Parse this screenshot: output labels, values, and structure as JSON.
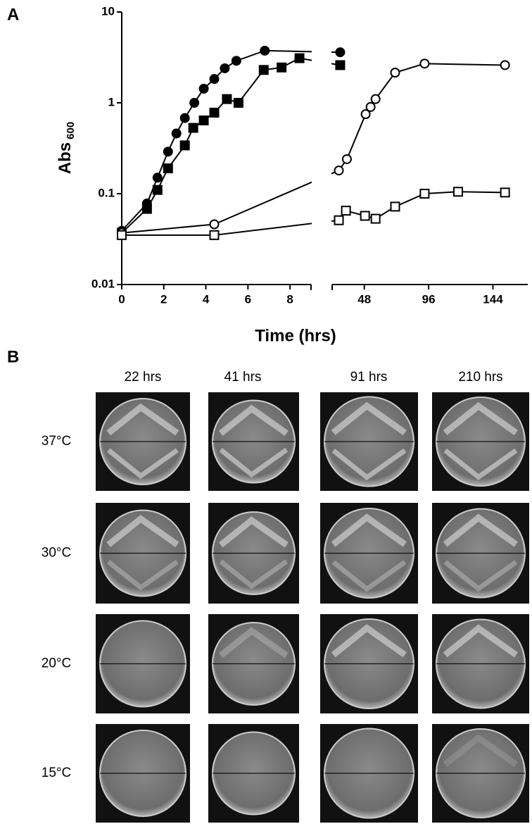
{
  "chart_data": {
    "type": "line",
    "panel_label": "A",
    "y_label": "Abs",
    "y_label_subscript": "600",
    "x_label": "Time (hrs)",
    "y_scale": "log",
    "ylim": [
      0.01,
      10
    ],
    "yticks": [
      0.01,
      0.1,
      1,
      10
    ],
    "xlim": [
      0,
      170
    ],
    "x_break": [
      9,
      24
    ],
    "xticks": [
      0,
      2,
      4,
      6,
      8,
      48,
      96,
      144
    ],
    "series": [
      {
        "marker": "circle",
        "fill": "#000000",
        "color": "#000000",
        "x": [
          0,
          1.2,
          1.7,
          2.2,
          2.6,
          3.0,
          3.45,
          3.9,
          4.4,
          4.9,
          5.45,
          6.8,
          30
        ],
        "values": [
          0.039,
          0.078,
          0.15,
          0.29,
          0.46,
          0.68,
          1.0,
          1.43,
          1.83,
          2.4,
          2.9,
          3.75,
          3.6
        ]
      },
      {
        "marker": "square",
        "fill": "#000000",
        "color": "#000000",
        "x": [
          0,
          1.2,
          1.7,
          2.2,
          3.0,
          3.4,
          3.9,
          4.4,
          5.0,
          5.55,
          6.75,
          7.6,
          8.45,
          30
        ],
        "values": [
          0.037,
          0.068,
          0.11,
          0.19,
          0.34,
          0.53,
          0.64,
          0.78,
          1.1,
          1.0,
          2.3,
          2.45,
          3.1,
          2.6
        ]
      },
      {
        "marker": "circle",
        "fill": "#ffffff",
        "color": "#000000",
        "x": [
          0,
          4.4,
          29,
          35,
          49,
          52.7,
          56.4,
          71,
          93,
          153
        ],
        "values": [
          0.037,
          0.046,
          0.18,
          0.24,
          0.75,
          0.9,
          1.1,
          2.15,
          2.7,
          2.6
        ]
      },
      {
        "marker": "square",
        "fill": "#ffffff",
        "color": "#000000",
        "x": [
          0,
          4.4,
          29,
          34.3,
          48.5,
          56.4,
          71,
          93,
          118,
          153
        ],
        "values": [
          0.035,
          0.035,
          0.051,
          0.065,
          0.057,
          0.053,
          0.072,
          0.1,
          0.105,
          0.103
        ]
      }
    ]
  },
  "panel_b": {
    "label": "B",
    "columns": [
      "22 hrs",
      "41 hrs",
      "91 hrs",
      "210 hrs"
    ],
    "rows": [
      "37°C",
      "30°C",
      "20°C",
      "15°C"
    ]
  }
}
